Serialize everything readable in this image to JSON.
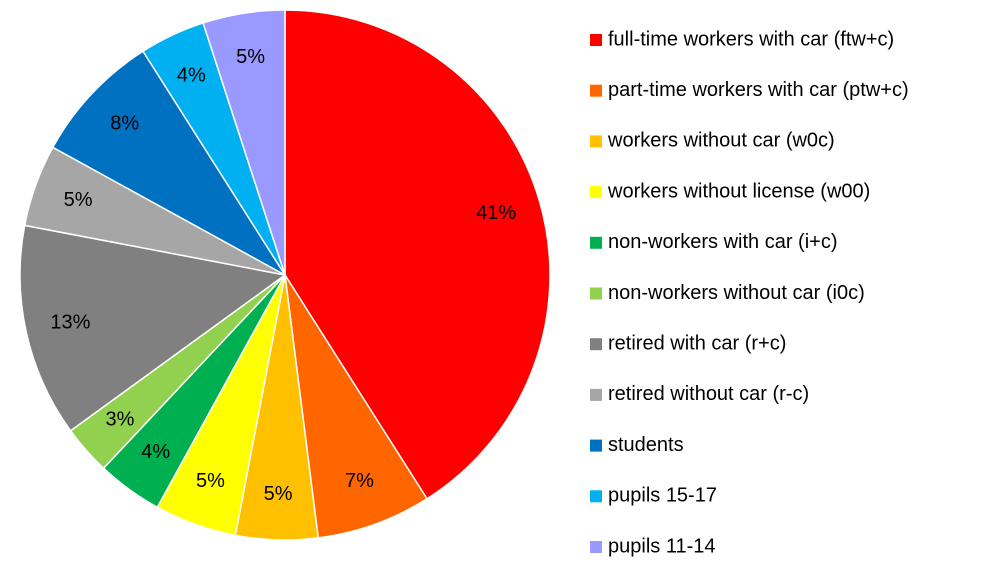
{
  "chart_data": {
    "type": "pie",
    "categories": [
      "full-time workers with car (ftw+c)",
      "part-time workers with car (ptw+c)",
      "workers without car (w0c)",
      "workers without license (w00)",
      "non-workers with car (i+c)",
      "non-workers without car (i0c)",
      "retired with car (r+c)",
      "retired without car (r-c)",
      "students",
      "pupils 15-17",
      "pupils 11-14"
    ],
    "values": [
      41,
      7,
      5,
      5,
      4,
      3,
      13,
      5,
      8,
      4,
      5
    ],
    "value_labels": [
      "41%",
      "7%",
      "5%",
      "5%",
      "4%",
      "3%",
      "13%",
      "5%",
      "8%",
      "4%",
      "5%"
    ],
    "colors": [
      "#ff0000",
      "#ff6600",
      "#ffc000",
      "#ffff00",
      "#00b050",
      "#92d050",
      "#808080",
      "#a6a6a6",
      "#0070c0",
      "#00b0f0",
      "#9999ff"
    ],
    "legend": "right"
  }
}
